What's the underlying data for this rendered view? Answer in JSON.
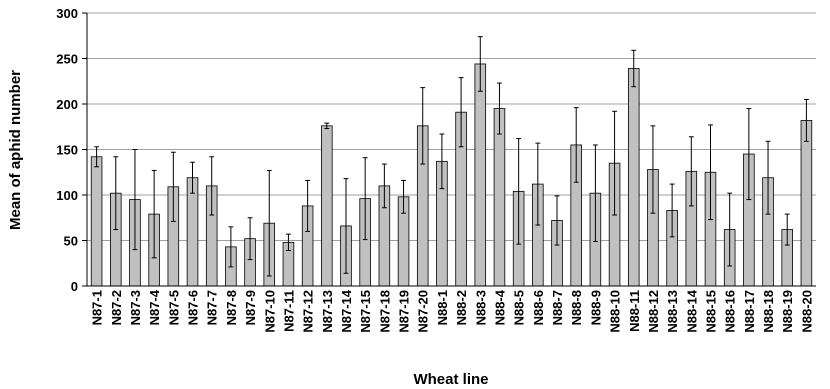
{
  "chart_data": {
    "type": "bar",
    "title": "",
    "xlabel": "Wheat line",
    "ylabel": "Mean of aphid number",
    "ylim": [
      0,
      300
    ],
    "yticks": [
      0,
      50,
      100,
      150,
      200,
      250,
      300
    ],
    "grid": "horizontal",
    "legend": "none",
    "bar_color": "#c0c0c0",
    "categories": [
      "N87-1",
      "N87-2",
      "N87-3",
      "N87-4",
      "N87-5",
      "N87-6",
      "N87-7",
      "N87-8",
      "N87-9",
      "N87-10",
      "N87-11",
      "N87-12",
      "N87-13",
      "N87-14",
      "N87-15",
      "N87-18",
      "N87-19",
      "N87-20",
      "N88-1",
      "N88-2",
      "N88-3",
      "N88-4",
      "N88-5",
      "N88-6",
      "N88-7",
      "N88-8",
      "N88-9",
      "N88-10",
      "N88-11",
      "N88-12",
      "N88-13",
      "N88-14",
      "N88-15",
      "N88-16",
      "N88-17",
      "N88-18",
      "N88-19",
      "N88-20"
    ],
    "values": [
      142,
      102,
      95,
      79,
      109,
      119,
      110,
      43,
      52,
      69,
      48,
      88,
      176,
      66,
      96,
      110,
      98,
      176,
      137,
      191,
      244,
      195,
      104,
      112,
      72,
      155,
      102,
      135,
      239,
      128,
      83,
      126,
      125,
      62,
      145,
      119,
      62,
      182
    ],
    "error": [
      11,
      40,
      55,
      48,
      38,
      17,
      32,
      22,
      23,
      58,
      9,
      28,
      3,
      52,
      45,
      24,
      18,
      42,
      30,
      38,
      30,
      28,
      58,
      45,
      27,
      41,
      53,
      57,
      20,
      48,
      29,
      38,
      52,
      40,
      50,
      40,
      17,
      23
    ]
  }
}
